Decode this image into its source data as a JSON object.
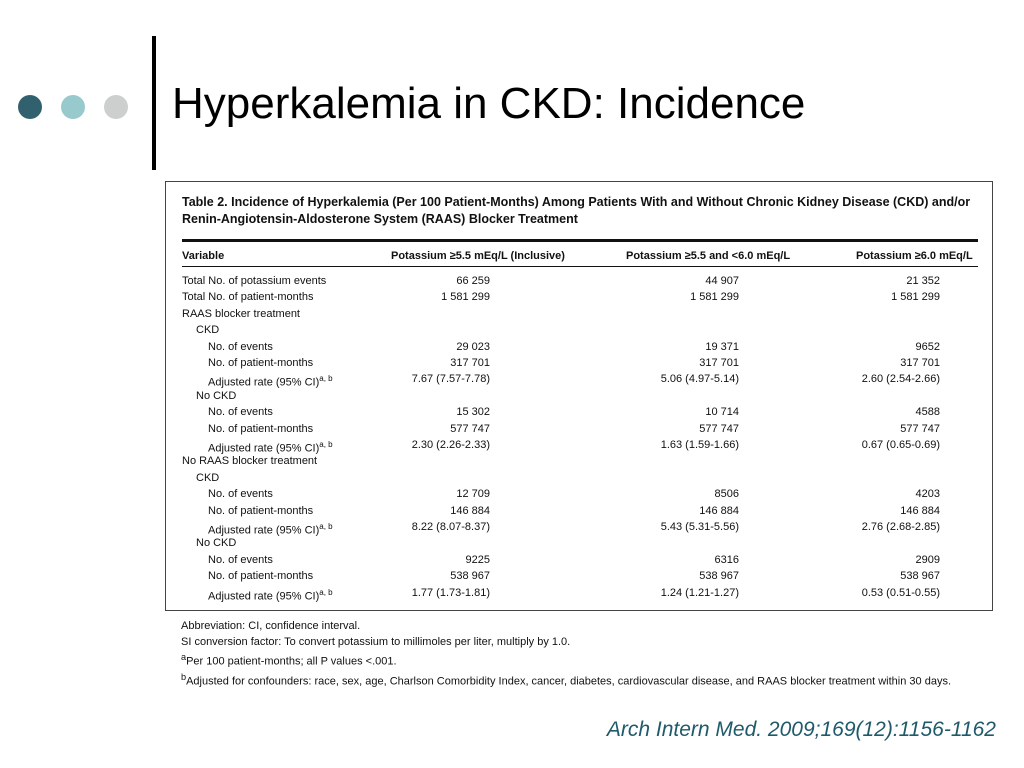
{
  "colors": {
    "dot_dark": "#31616e",
    "dot_mid": "#97c9cd",
    "dot_light": "#cdcfcf",
    "citation": "#1f5a6b"
  },
  "slide": {
    "title": "Hyperkalemia in CKD: Incidence",
    "citation": "Arch Intern Med. 2009;169(12):1156-1162"
  },
  "table": {
    "caption": "Table 2. Incidence of Hyperkalemia (Per 100 Patient-Months) Among Patients With and Without Chronic Kidney Disease (CKD) and/or Renin-Angiotensin-Aldosterone System (RAAS) Blocker Treatment",
    "columns": [
      "Variable",
      "Potassium ≥5.5 mEq/L (Inclusive)",
      "Potassium ≥5.5 and <6.0 mEq/L",
      "Potassium ≥6.0 mEq/L"
    ],
    "rows": [
      {
        "label": "Total No. of potassium events",
        "indent": 0,
        "v1": "66 259",
        "v2": "44 907",
        "v3": "21 352"
      },
      {
        "label": "Total No. of patient-months",
        "indent": 0,
        "v1": "1 581 299",
        "v2": "1 581 299",
        "v3": "1 581 299"
      },
      {
        "label": "RAAS blocker treatment",
        "indent": 0,
        "v1": "",
        "v2": "",
        "v3": ""
      },
      {
        "label": "CKD",
        "indent": 1,
        "v1": "",
        "v2": "",
        "v3": ""
      },
      {
        "label": "No. of events",
        "indent": 2,
        "v1": "29 023",
        "v2": "19 371",
        "v3": "9652"
      },
      {
        "label": "No. of patient-months",
        "indent": 2,
        "v1": "317 701",
        "v2": "317 701",
        "v3": "317 701"
      },
      {
        "label": "Adjusted rate (95% CI)",
        "sup": "a, b",
        "indent": 2,
        "v1": "7.67 (7.57-7.78)",
        "v2": "5.06 (4.97-5.14)",
        "v3": "2.60 (2.54-2.66)"
      },
      {
        "label": "No CKD",
        "indent": 1,
        "v1": "",
        "v2": "",
        "v3": ""
      },
      {
        "label": "No. of events",
        "indent": 2,
        "v1": "15 302",
        "v2": "10 714",
        "v3": "4588"
      },
      {
        "label": "No. of patient-months",
        "indent": 2,
        "v1": "577 747",
        "v2": "577 747",
        "v3": "577 747"
      },
      {
        "label": "Adjusted rate (95% CI)",
        "sup": "a, b",
        "indent": 2,
        "v1": "2.30 (2.26-2.33)",
        "v2": "1.63 (1.59-1.66)",
        "v3": "0.67 (0.65-0.69)"
      },
      {
        "label": "No RAAS blocker treatment",
        "indent": 0,
        "v1": "",
        "v2": "",
        "v3": ""
      },
      {
        "label": "CKD",
        "indent": 1,
        "v1": "",
        "v2": "",
        "v3": ""
      },
      {
        "label": "No. of events",
        "indent": 2,
        "v1": "12 709",
        "v2": "8506",
        "v3": "4203"
      },
      {
        "label": "No. of patient-months",
        "indent": 2,
        "v1": "146 884",
        "v2": "146 884",
        "v3": "146 884"
      },
      {
        "label": "Adjusted rate (95% CI)",
        "sup": "a, b",
        "indent": 2,
        "v1": "8.22 (8.07-8.37)",
        "v2": "5.43 (5.31-5.56)",
        "v3": "2.76 (2.68-2.85)"
      },
      {
        "label": "No CKD",
        "indent": 1,
        "v1": "",
        "v2": "",
        "v3": ""
      },
      {
        "label": "No. of events",
        "indent": 2,
        "v1": "9225",
        "v2": "6316",
        "v3": "2909"
      },
      {
        "label": "No. of patient-months",
        "indent": 2,
        "v1": "538 967",
        "v2": "538 967",
        "v3": "538 967"
      },
      {
        "label": "Adjusted rate (95% CI)",
        "sup": "a, b",
        "indent": 2,
        "v1": "1.77 (1.73-1.81)",
        "v2": "1.24 (1.21-1.27)",
        "v3": "0.53 (0.51-0.55)"
      }
    ]
  },
  "footnotes": {
    "abbreviation": "Abbreviation: CI, confidence interval.",
    "si_conversion": "SI conversion factor: To convert potassium to millimoles per liter, multiply by 1.0.",
    "note_a_marker": "a",
    "note_a": "Per 100 patient-months; all P values <.001.",
    "note_b_marker": "b",
    "note_b": "Adjusted for confounders: race, sex, age, Charlson Comorbidity Index, cancer, diabetes, cardiovascular disease, and RAAS blocker treatment within 30 days."
  }
}
